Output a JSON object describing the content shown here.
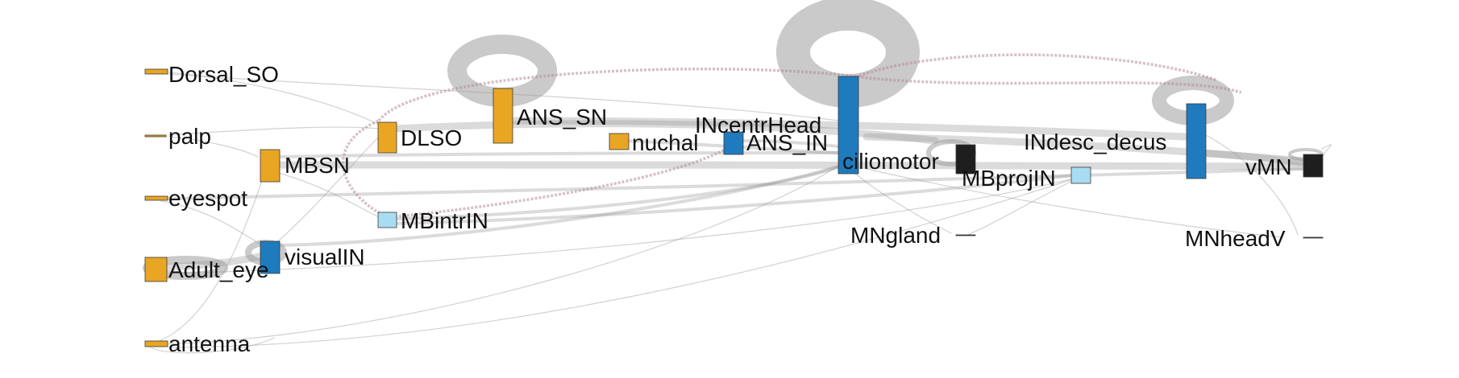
{
  "colors": {
    "sensory": "#e8a623",
    "interneuron": "#1f7bbd",
    "projection": "#a8dcf2",
    "motor": "#1e1e1e",
    "edge": "#999999",
    "loop": "#bdbdbd",
    "dashed_edge": "#b48a9a"
  },
  "nodes": [
    {
      "id": "Dorsal_SO",
      "label": "Dorsal_SO",
      "kind": "sensory"
    },
    {
      "id": "palp",
      "label": "palp",
      "kind": "sensory"
    },
    {
      "id": "eyespot",
      "label": "eyespot",
      "kind": "sensory"
    },
    {
      "id": "Adult_eye",
      "label": "Adult_eye",
      "kind": "sensory"
    },
    {
      "id": "antenna",
      "label": "antenna",
      "kind": "sensory"
    },
    {
      "id": "MBSN",
      "label": "MBSN",
      "kind": "sensory"
    },
    {
      "id": "visualIN",
      "label": "visualIN",
      "kind": "interneuron"
    },
    {
      "id": "DLSO",
      "label": "DLSO",
      "kind": "sensory"
    },
    {
      "id": "MBintrIN",
      "label": "MBintrIN",
      "kind": "projection"
    },
    {
      "id": "ANS_SN",
      "label": "ANS_SN",
      "kind": "sensory"
    },
    {
      "id": "nuchal",
      "label": "nuchal",
      "kind": "sensory"
    },
    {
      "id": "INcentrHead",
      "label": "INcentrHead",
      "kind": "interneuron"
    },
    {
      "id": "ANS_IN",
      "label": "ANS_IN",
      "kind": "interneuron"
    },
    {
      "id": "ciliomotor",
      "label": "ciliomotor",
      "kind": "interneuron"
    },
    {
      "id": "MNgland",
      "label": "MNgland",
      "kind": "motor"
    },
    {
      "id": "MBprojIN",
      "label": "MBprojIN",
      "kind": "projection"
    },
    {
      "id": "INdesc_decus",
      "label": "INdesc_decus",
      "kind": "interneuron"
    },
    {
      "id": "MNheadV",
      "label": "MNheadV",
      "kind": "motor"
    },
    {
      "id": "vMN",
      "label": "vMN",
      "kind": "motor"
    }
  ]
}
